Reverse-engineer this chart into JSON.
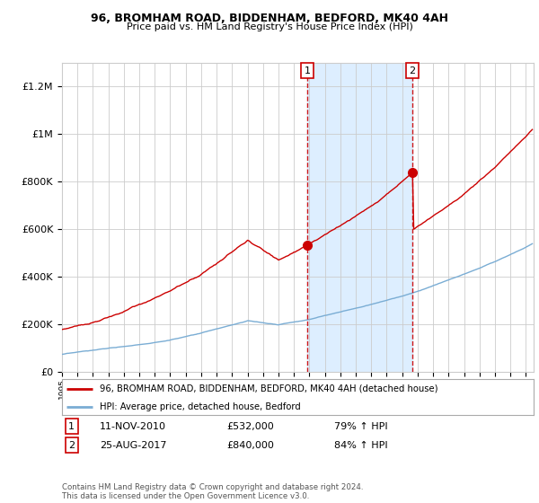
{
  "title": "96, BROMHAM ROAD, BIDDENHAM, BEDFORD, MK40 4AH",
  "subtitle": "Price paid vs. HM Land Registry's House Price Index (HPI)",
  "footnote": "Contains HM Land Registry data © Crown copyright and database right 2024.\nThis data is licensed under the Open Government Licence v3.0.",
  "red_label": "96, BROMHAM ROAD, BIDDENHAM, BEDFORD, MK40 4AH (detached house)",
  "blue_label": "HPI: Average price, detached house, Bedford",
  "marker1": {
    "date_year": 2010.87,
    "price": 532000,
    "label": "1",
    "date_str": "11-NOV-2010",
    "price_str": "£532,000",
    "pct_str": "79% ↑ HPI"
  },
  "marker2": {
    "date_year": 2017.65,
    "price": 840000,
    "label": "2",
    "date_str": "25-AUG-2017",
    "price_str": "£840,000",
    "pct_str": "84% ↑ HPI"
  },
  "shade_start": 2010.87,
  "shade_end": 2017.65,
  "ylim": [
    0,
    1300000
  ],
  "xlim_start": 1995.0,
  "xlim_end": 2025.5,
  "yticks": [
    0,
    200000,
    400000,
    600000,
    800000,
    1000000,
    1200000
  ],
  "ytick_labels": [
    "£0",
    "£200K",
    "£400K",
    "£600K",
    "£800K",
    "£1M",
    "£1.2M"
  ],
  "xticks": [
    1995,
    1996,
    1997,
    1998,
    1999,
    2000,
    2001,
    2002,
    2003,
    2004,
    2005,
    2006,
    2007,
    2008,
    2009,
    2010,
    2011,
    2012,
    2013,
    2014,
    2015,
    2016,
    2017,
    2018,
    2019,
    2020,
    2021,
    2022,
    2023,
    2024,
    2025
  ],
  "bg_color": "#ffffff",
  "grid_color": "#cccccc",
  "red_color": "#cc0000",
  "blue_color": "#7aadd4",
  "shade_color": "#ddeeff"
}
